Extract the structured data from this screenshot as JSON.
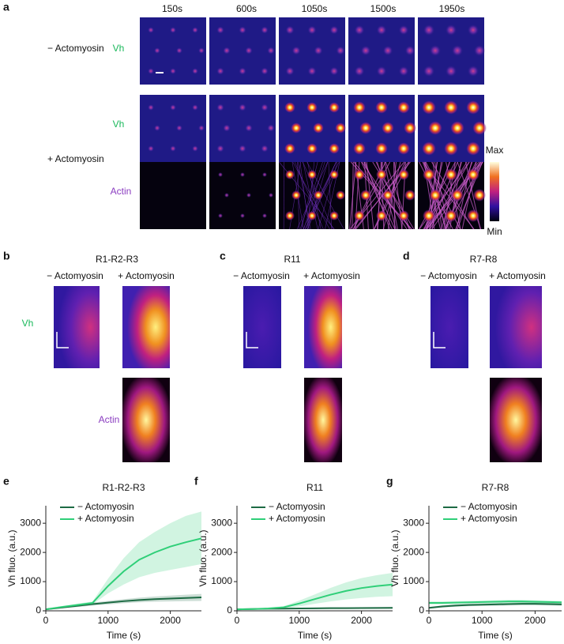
{
  "figure": {
    "panel_labels": [
      "a",
      "b",
      "c",
      "d"
    ],
    "time_points": [
      "150s",
      "600s",
      "1050s",
      "1500s",
      "1950s"
    ],
    "conditions": [
      "− Actomyosin",
      "+ Actomyosin"
    ],
    "channels": [
      "Vh",
      "Actin"
    ],
    "colorbar": [
      "Max",
      "Min"
    ],
    "kymograph_titles": [
      "R1-R2-R3",
      "R11",
      "R7-R8"
    ]
  },
  "chart_data": [
    {
      "type": "line",
      "label": "e",
      "title": "R1-R2-R3",
      "xlabel": "Time (s)",
      "ylabel": "Vh fluo. (a.u.)",
      "x": [
        0,
        250,
        500,
        750,
        1000,
        1250,
        1500,
        1750,
        2000,
        2250,
        2500
      ],
      "xlim": [
        0,
        2500
      ],
      "xticks": [
        0,
        1000,
        2000
      ],
      "ylim": [
        0,
        3600
      ],
      "yticks": [
        0,
        1000,
        2000,
        3000
      ],
      "series": [
        {
          "name": "− Actomyosin",
          "color": "#1d6b44",
          "values": [
            50,
            110,
            170,
            230,
            280,
            330,
            370,
            400,
            420,
            440,
            460
          ],
          "lower": [
            30,
            80,
            130,
            180,
            220,
            260,
            290,
            310,
            320,
            330,
            340
          ],
          "upper": [
            70,
            140,
            210,
            280,
            340,
            400,
            450,
            490,
            520,
            550,
            580
          ]
        },
        {
          "name": "+ Actomyosin",
          "color": "#2fcf78",
          "values": [
            50,
            130,
            200,
            270,
            850,
            1350,
            1750,
            2000,
            2200,
            2350,
            2480
          ],
          "lower": [
            30,
            100,
            160,
            220,
            600,
            900,
            1150,
            1300,
            1400,
            1500,
            1600
          ],
          "upper": [
            70,
            160,
            240,
            320,
            1100,
            1800,
            2350,
            2700,
            3000,
            3250,
            3400
          ]
        }
      ]
    },
    {
      "type": "line",
      "label": "f",
      "title": "R11",
      "xlabel": "Time (s)",
      "ylabel": "Vh fluo. (a.u.)",
      "x": [
        0,
        250,
        500,
        750,
        1000,
        1250,
        1500,
        1750,
        2000,
        2250,
        2500
      ],
      "xlim": [
        0,
        2500
      ],
      "xticks": [
        0,
        1000,
        2000
      ],
      "ylim": [
        0,
        3600
      ],
      "yticks": [
        0,
        1000,
        2000,
        3000
      ],
      "series": [
        {
          "name": "− Actomyosin",
          "color": "#1d6b44",
          "values": [
            50,
            60,
            70,
            75,
            80,
            85,
            90,
            92,
            95,
            97,
            100
          ],
          "lower": [
            40,
            45,
            50,
            55,
            58,
            60,
            62,
            64,
            66,
            68,
            70
          ],
          "upper": [
            60,
            75,
            90,
            95,
            100,
            110,
            118,
            120,
            124,
            126,
            130
          ]
        },
        {
          "name": "+ Actomyosin",
          "color": "#2fcf78",
          "values": [
            50,
            60,
            80,
            120,
            250,
            400,
            550,
            680,
            780,
            850,
            900
          ],
          "lower": [
            40,
            45,
            55,
            80,
            150,
            240,
            320,
            390,
            440,
            480,
            500
          ],
          "upper": [
            60,
            75,
            105,
            160,
            350,
            560,
            780,
            970,
            1120,
            1220,
            1300
          ]
        }
      ]
    },
    {
      "type": "line",
      "label": "g",
      "title": "R7-R8",
      "xlabel": "Time (s)",
      "ylabel": "Vh fluo. (a.u.)",
      "x": [
        0,
        250,
        500,
        750,
        1000,
        1250,
        1500,
        1750,
        2000,
        2250,
        2500
      ],
      "xlim": [
        0,
        2500
      ],
      "xticks": [
        0,
        1000,
        2000
      ],
      "ylim": [
        0,
        3600
      ],
      "yticks": [
        0,
        1000,
        2000,
        3000
      ],
      "series": [
        {
          "name": "− Actomyosin",
          "color": "#1d6b44",
          "values": [
            100,
            150,
            180,
            200,
            210,
            220,
            230,
            240,
            240,
            230,
            220
          ],
          "lower": [
            70,
            110,
            140,
            160,
            170,
            175,
            185,
            190,
            190,
            185,
            175
          ],
          "upper": [
            130,
            190,
            220,
            240,
            250,
            265,
            275,
            290,
            290,
            275,
            265
          ]
        },
        {
          "name": "+ Actomyosin",
          "color": "#2fcf78",
          "values": [
            270,
            270,
            280,
            290,
            300,
            310,
            320,
            320,
            310,
            300,
            290
          ],
          "lower": [
            220,
            220,
            230,
            240,
            250,
            255,
            260,
            260,
            255,
            250,
            240
          ],
          "upper": [
            320,
            320,
            330,
            340,
            350,
            365,
            380,
            380,
            365,
            350,
            340
          ]
        }
      ]
    }
  ]
}
